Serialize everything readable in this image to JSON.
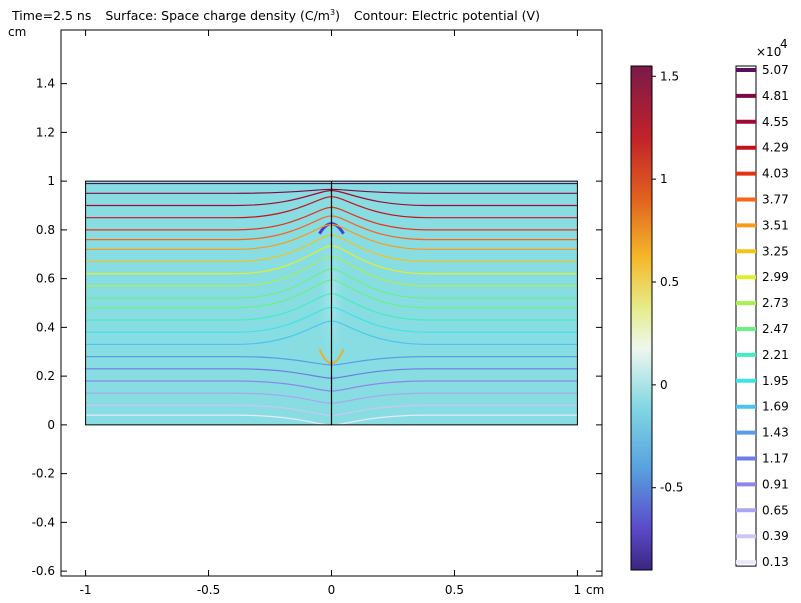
{
  "title": {
    "time": "Time=2.5 ns",
    "surface": "Surface: Space charge density (C/m",
    "surface_sup": "3",
    "surface_end": ")",
    "contour": "Contour: Electric potential (V)"
  },
  "chart_data": {
    "type": "heatmap",
    "x_unit": "cm",
    "y_unit": "cm",
    "xlim": [
      -1.1,
      1.1
    ],
    "ylim": [
      -0.62,
      1.62
    ],
    "x_ticks": [
      -1,
      -0.5,
      0,
      0.5,
      1
    ],
    "x_tick_labels": [
      "-1",
      "-0.5",
      "0",
      "0.5",
      "1"
    ],
    "y_ticks": [
      -0.6,
      -0.4,
      -0.2,
      0,
      0.2,
      0.4,
      0.6,
      0.8,
      1,
      1.2,
      1.4
    ],
    "y_tick_labels": [
      "-0.6",
      "-0.4",
      "-0.2",
      "0",
      "0.2",
      "0.4",
      "0.6",
      "0.8",
      "1",
      "1.2",
      "1.4"
    ],
    "domain": {
      "x": [
        -1,
        1
      ],
      "y": [
        0,
        1
      ]
    },
    "background_color": "#88dde2",
    "surface_colorbar": {
      "range": [
        -0.9,
        1.55
      ],
      "ticks": [
        1.5,
        1,
        0.5,
        0,
        -0.5
      ],
      "tick_labels": [
        "1.5",
        "1",
        "0.5",
        "0",
        "-0.5"
      ],
      "colormap": [
        "#3b2582",
        "#5a49c8",
        "#58a0e0",
        "#80d6e2",
        "#ffffff",
        "#d9e63b",
        "#f5a418",
        "#d43a22",
        "#9c1838",
        "#7a1a4a"
      ]
    },
    "contour_legend": {
      "multiplier": "×10",
      "multiplier_exp": "4",
      "levels": [
        "5.07",
        "4.81",
        "4.55",
        "4.29",
        "4.03",
        "3.77",
        "3.51",
        "3.25",
        "2.99",
        "2.73",
        "2.47",
        "2.21",
        "1.95",
        "1.69",
        "1.43",
        "1.17",
        "0.91",
        "0.65",
        "0.39",
        "0.13"
      ],
      "colors": [
        "#5a0f5c",
        "#7c0a45",
        "#9f0a34",
        "#c4131c",
        "#e33316",
        "#f7651a",
        "#f89b1c",
        "#f4c21b",
        "#dfee2d",
        "#a7f050",
        "#6cf086",
        "#44ecc0",
        "#3fe3e6",
        "#4cc4f0",
        "#5b9ce8",
        "#6e7ce8",
        "#8c88e8",
        "#aaa5ee",
        "#cbc7f4",
        "#e9e9f7"
      ]
    },
    "contour_lines_y_at_edge": [
      0.99,
      0.95,
      0.9,
      0.85,
      0.8,
      0.76,
      0.72,
      0.67,
      0.62,
      0.57,
      0.52,
      0.48,
      0.43,
      0.38,
      0.33,
      0.28,
      0.23,
      0.18,
      0.13,
      0.08,
      0.04
    ],
    "streamer": {
      "x": 0,
      "tip_top": 0.85,
      "tip_bottom": 0.22
    }
  }
}
